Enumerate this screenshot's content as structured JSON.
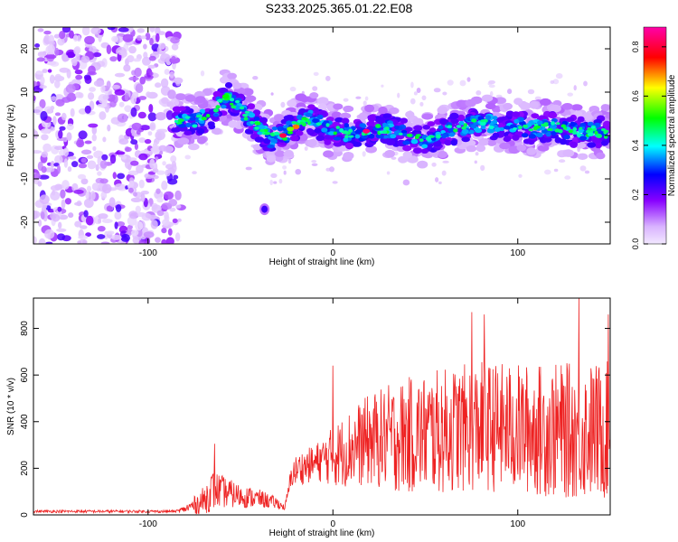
{
  "title": "S233.2025.365.01.22.E08",
  "chart_data": [
    {
      "type": "heatmap",
      "title": "",
      "xlabel": "Height of straight line (km)",
      "ylabel": "Frequency (Hz)",
      "xlim": [
        -162,
        150
      ],
      "ylim": [
        -25,
        25
      ],
      "xticks": [
        -100,
        0,
        100
      ],
      "yticks": [
        -20,
        -10,
        0,
        10,
        20
      ],
      "grid": false,
      "colorbar": {
        "label": "Normalized spectral amplitude",
        "range": [
          0,
          0.88
        ],
        "ticks": [
          0.0,
          0.2,
          0.4,
          0.6,
          0.8
        ],
        "colors": [
          "#f2e8ff",
          "#d9b3ff",
          "#8800ff",
          "#0000ff",
          "#00ffff",
          "#00ff00",
          "#ffff00",
          "#ff0000",
          "#ff00aa"
        ]
      },
      "ridge": {
        "description": "dominant frequency of the signal vs height",
        "x": [
          -85,
          -75,
          -65,
          -58,
          -52,
          -45,
          -38,
          -33,
          -30,
          -26,
          -22,
          -18,
          -12,
          -5,
          0,
          10,
          20,
          30,
          40,
          50,
          60,
          70,
          80,
          90,
          100,
          110,
          120,
          130,
          140,
          150
        ],
        "y": [
          4,
          3,
          5,
          9,
          7,
          4,
          1,
          -1,
          1,
          0,
          2,
          3,
          4,
          2,
          1,
          0.5,
          1,
          1.5,
          0,
          -1,
          1,
          2,
          3,
          2.5,
          2,
          1.5,
          2,
          1,
          1,
          0.5
        ]
      },
      "noise_region_x": [
        -162,
        -85
      ],
      "isolated_blob": {
        "x": -37,
        "y": -17
      }
    },
    {
      "type": "line",
      "title": "",
      "xlabel": "Height of straight line (km)",
      "ylabel": "SNR (10 * v/v)",
      "xlim": [
        -162,
        150
      ],
      "ylim": [
        0,
        930
      ],
      "xticks": [
        -100,
        0,
        100
      ],
      "yticks": [
        0,
        200,
        400,
        600,
        800
      ],
      "grid": false,
      "color": "#ee2222",
      "envelope": {
        "description": "approximate baseline and noise amplitude of the SNR trace",
        "x": [
          -162,
          -85,
          -80,
          -70,
          -65,
          -60,
          -50,
          -40,
          -30,
          -26,
          -22,
          -18,
          -10,
          -5,
          0,
          10,
          20,
          30,
          40,
          50,
          60,
          80,
          100,
          120,
          150
        ],
        "baseline": [
          15,
          15,
          25,
          60,
          110,
          100,
          80,
          70,
          50,
          30,
          180,
          200,
          220,
          240,
          250,
          290,
          320,
          330,
          340,
          350,
          360,
          380,
          370,
          360,
          360
        ],
        "amplitude": [
          6,
          6,
          15,
          60,
          90,
          70,
          50,
          40,
          25,
          10,
          60,
          70,
          80,
          100,
          130,
          170,
          200,
          230,
          250,
          260,
          270,
          280,
          280,
          290,
          300
        ]
      },
      "peaks": [
        {
          "x": -64,
          "y": 305
        },
        {
          "x": 0,
          "y": 640
        },
        {
          "x": 75,
          "y": 870
        },
        {
          "x": 82,
          "y": 860
        },
        {
          "x": 133,
          "y": 930
        },
        {
          "x": 149,
          "y": 860
        }
      ]
    }
  ]
}
